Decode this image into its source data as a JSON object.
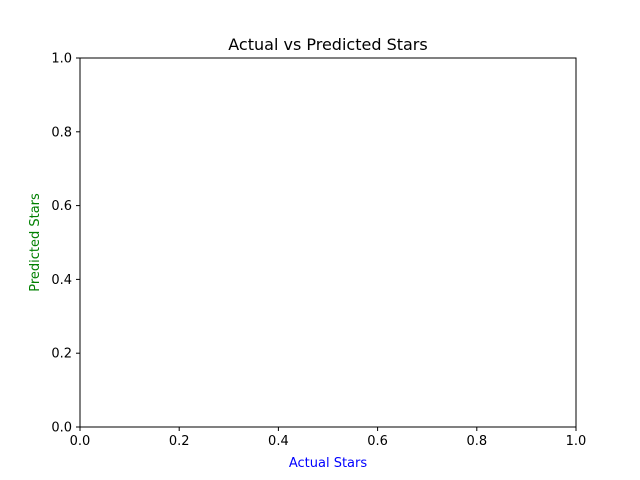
{
  "chart_data": {
    "type": "scatter",
    "title": "Actual vs Predicted Stars",
    "xlabel": "Actual Stars",
    "ylabel": "Predicted Stars",
    "xlim": [
      0,
      1
    ],
    "ylim": [
      0,
      1
    ],
    "x_ticks": [
      0.0,
      0.2,
      0.4,
      0.6,
      0.8,
      1.0
    ],
    "y_ticks": [
      0.0,
      0.2,
      0.4,
      0.6,
      0.8,
      1.0
    ],
    "x_tick_labels": [
      "0.0",
      "0.2",
      "0.4",
      "0.6",
      "0.8",
      "1.0"
    ],
    "y_tick_labels": [
      "0.0",
      "0.2",
      "0.4",
      "0.6",
      "0.8",
      "1.0"
    ],
    "grid": false,
    "xlabel_color": "#0000ff",
    "ylabel_color": "#008000",
    "points": []
  }
}
